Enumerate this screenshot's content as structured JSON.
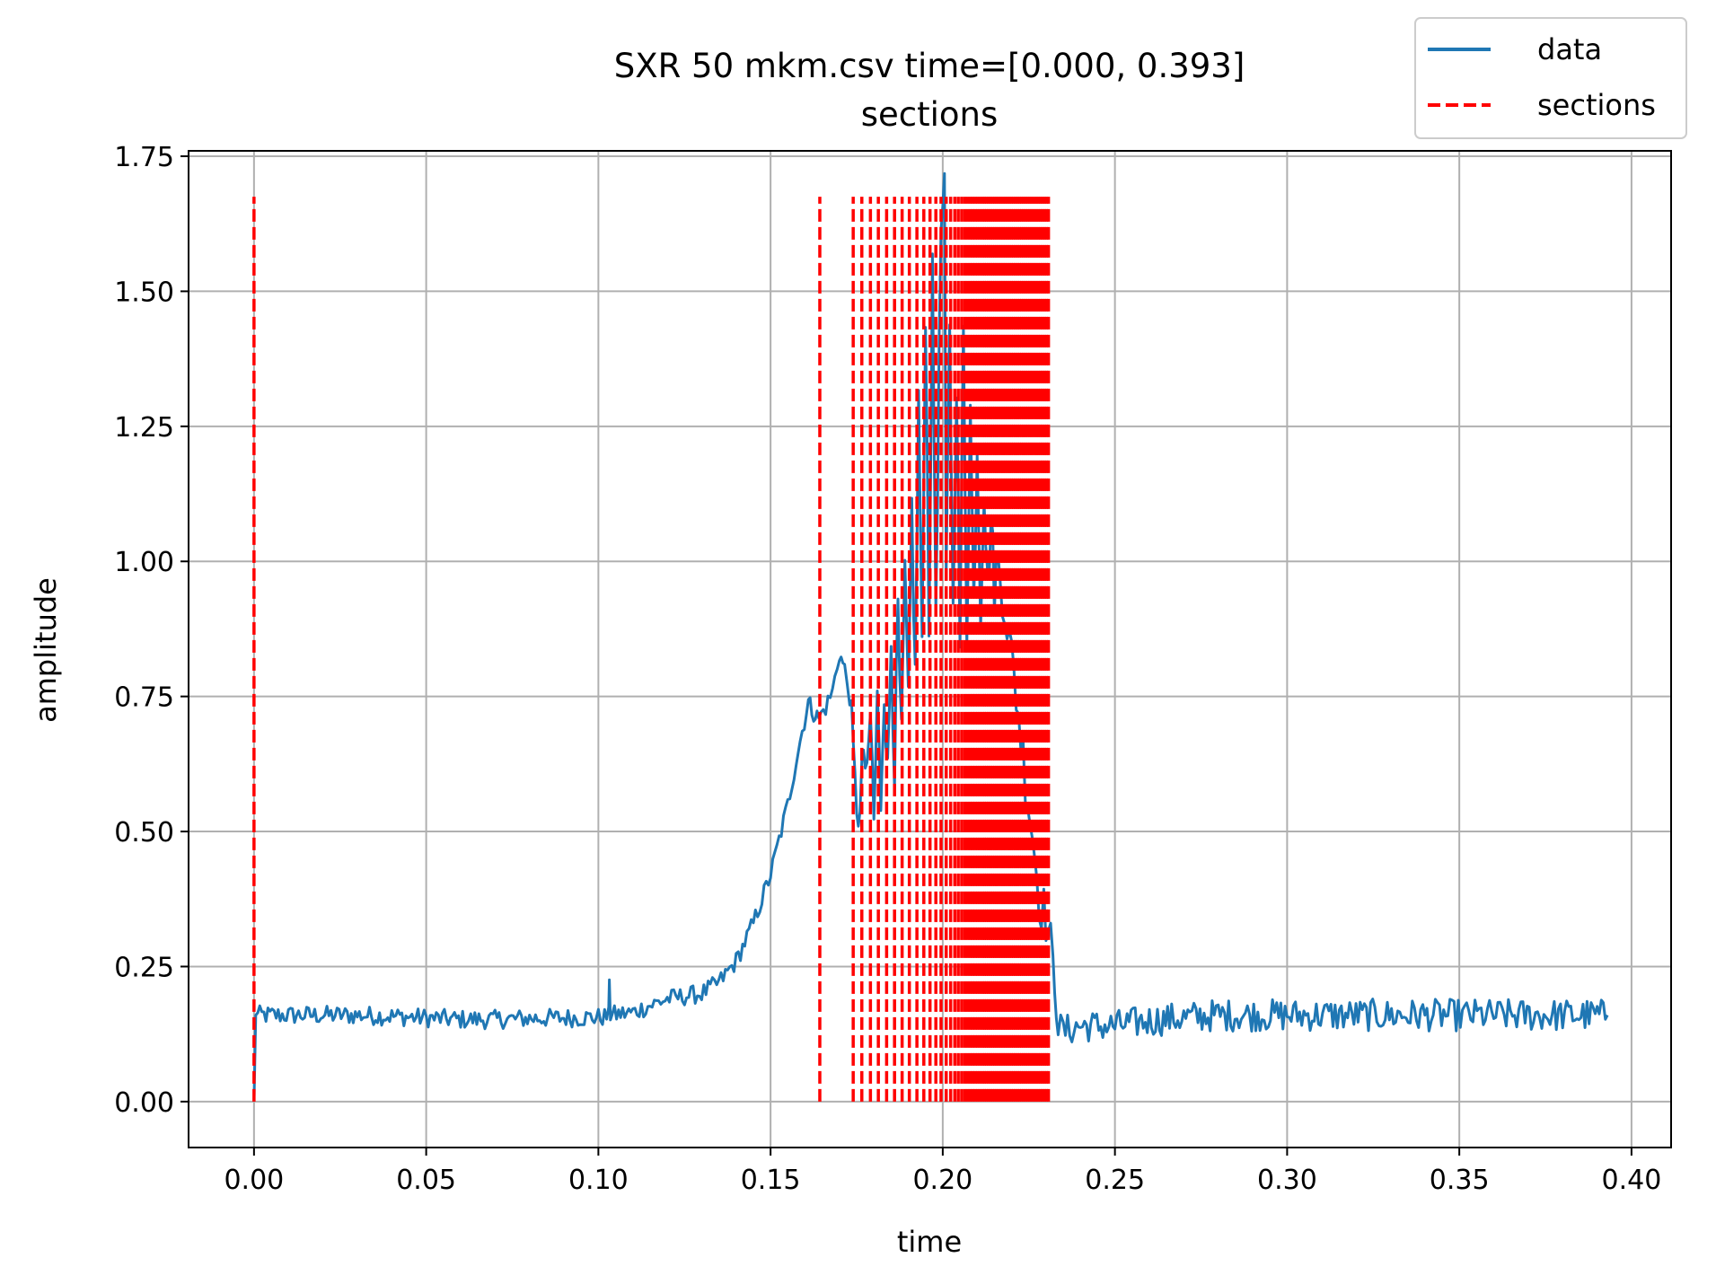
{
  "chart_data": {
    "type": "line",
    "title": "SXR 50 mkm.csv time=[0.000, 0.393]",
    "subtitle": "sections",
    "xlabel": "time",
    "ylabel": "amplitude",
    "xlim": [
      -0.019,
      0.4115
    ],
    "ylim": [
      -0.085,
      1.76
    ],
    "grid": true,
    "legend_position": "top-right (outside axes)",
    "x_ticks": [
      "0.00",
      "0.05",
      "0.10",
      "0.15",
      "0.20",
      "0.25",
      "0.30",
      "0.35",
      "0.40"
    ],
    "y_ticks": [
      "0.00",
      "0.25",
      "0.50",
      "0.75",
      "1.00",
      "1.25",
      "1.50",
      "1.75"
    ],
    "series": [
      {
        "name": "data",
        "color": "#1f77b4",
        "points": [
          [
            0.0,
            0.0
          ],
          [
            0.0005,
            0.16
          ],
          [
            0.01,
            0.16
          ],
          [
            0.02,
            0.16
          ],
          [
            0.03,
            0.16
          ],
          [
            0.04,
            0.158
          ],
          [
            0.05,
            0.155
          ],
          [
            0.06,
            0.152
          ],
          [
            0.07,
            0.152
          ],
          [
            0.08,
            0.154
          ],
          [
            0.09,
            0.155
          ],
          [
            0.1,
            0.156
          ],
          [
            0.103,
            0.158
          ],
          [
            0.1032,
            0.235
          ],
          [
            0.1035,
            0.16
          ],
          [
            0.11,
            0.165
          ],
          [
            0.115,
            0.178
          ],
          [
            0.12,
            0.19
          ],
          [
            0.125,
            0.195
          ],
          [
            0.13,
            0.2
          ],
          [
            0.135,
            0.22
          ],
          [
            0.14,
            0.26
          ],
          [
            0.145,
            0.33
          ],
          [
            0.15,
            0.42
          ],
          [
            0.155,
            0.55
          ],
          [
            0.158,
            0.65
          ],
          [
            0.161,
            0.74
          ],
          [
            0.1625,
            0.72
          ],
          [
            0.164,
            0.71
          ],
          [
            0.166,
            0.73
          ],
          [
            0.168,
            0.76
          ],
          [
            0.17,
            0.83
          ],
          [
            0.1715,
            0.8
          ],
          [
            0.173,
            0.75
          ],
          [
            0.1745,
            0.58
          ],
          [
            0.176,
            0.52
          ],
          [
            0.177,
            0.66
          ],
          [
            0.178,
            0.58
          ],
          [
            0.179,
            0.72
          ],
          [
            0.18,
            0.52
          ],
          [
            0.181,
            0.74
          ],
          [
            0.182,
            0.56
          ],
          [
            0.183,
            0.78
          ],
          [
            0.184,
            0.6
          ],
          [
            0.185,
            0.86
          ],
          [
            0.186,
            0.62
          ],
          [
            0.187,
            0.9
          ],
          [
            0.188,
            0.66
          ],
          [
            0.189,
            0.98
          ],
          [
            0.19,
            0.72
          ],
          [
            0.191,
            1.1
          ],
          [
            0.192,
            0.78
          ],
          [
            0.193,
            1.3
          ],
          [
            0.194,
            0.82
          ],
          [
            0.195,
            1.48
          ],
          [
            0.196,
            0.9
          ],
          [
            0.197,
            1.52
          ],
          [
            0.198,
            0.92
          ],
          [
            0.1995,
            1.62
          ],
          [
            0.2005,
            1.67
          ],
          [
            0.201,
            0.95
          ],
          [
            0.202,
            1.45
          ],
          [
            0.203,
            0.9
          ],
          [
            0.204,
            1.35
          ],
          [
            0.205,
            0.85
          ],
          [
            0.206,
            1.42
          ],
          [
            0.207,
            0.88
          ],
          [
            0.208,
            1.28
          ],
          [
            0.209,
            0.92
          ],
          [
            0.21,
            1.22
          ],
          [
            0.211,
            0.92
          ],
          [
            0.212,
            1.15
          ],
          [
            0.213,
            0.95
          ],
          [
            0.214,
            1.08
          ],
          [
            0.215,
            0.95
          ],
          [
            0.216,
            1.0
          ],
          [
            0.218,
            0.92
          ],
          [
            0.22,
            0.82
          ],
          [
            0.222,
            0.72
          ],
          [
            0.224,
            0.6
          ],
          [
            0.226,
            0.5
          ],
          [
            0.228,
            0.38
          ],
          [
            0.23,
            0.34
          ],
          [
            0.232,
            0.26
          ],
          [
            0.2335,
            0.14
          ],
          [
            0.235,
            0.13
          ],
          [
            0.24,
            0.14
          ],
          [
            0.25,
            0.14
          ],
          [
            0.26,
            0.15
          ],
          [
            0.27,
            0.155
          ],
          [
            0.28,
            0.16
          ],
          [
            0.3,
            0.16
          ],
          [
            0.32,
            0.16
          ],
          [
            0.34,
            0.16
          ],
          [
            0.36,
            0.16
          ],
          [
            0.38,
            0.16
          ],
          [
            0.393,
            0.16
          ]
        ],
        "noise_amplitude": 0.025
      },
      {
        "name": "sections",
        "color": "#ff0000",
        "style": "dashed",
        "vertical_lines_x": [
          0.0,
          0.1643,
          0.174,
          0.1765,
          0.179,
          0.1813,
          0.1837,
          0.186,
          0.1882,
          0.1903,
          0.1925,
          0.1945,
          0.1963,
          0.198,
          0.1995,
          0.201,
          0.2023,
          0.2035,
          0.2045,
          0.2055,
          0.2064,
          0.2072,
          0.208,
          0.2087,
          0.2094,
          0.2101,
          0.2108,
          0.2115,
          0.2121,
          0.2127,
          0.2133,
          0.2139,
          0.2145,
          0.2151,
          0.2157,
          0.2163,
          0.2169,
          0.2175,
          0.2181,
          0.2187,
          0.2193,
          0.2199,
          0.2205,
          0.2211,
          0.2217,
          0.2223,
          0.2229,
          0.2235,
          0.2241,
          0.2247,
          0.2253,
          0.2259,
          0.2265,
          0.2271,
          0.2277,
          0.2283,
          0.2289,
          0.2295,
          0.2301,
          0.2307
        ],
        "y_range": [
          0.0,
          1.675
        ]
      }
    ]
  }
}
